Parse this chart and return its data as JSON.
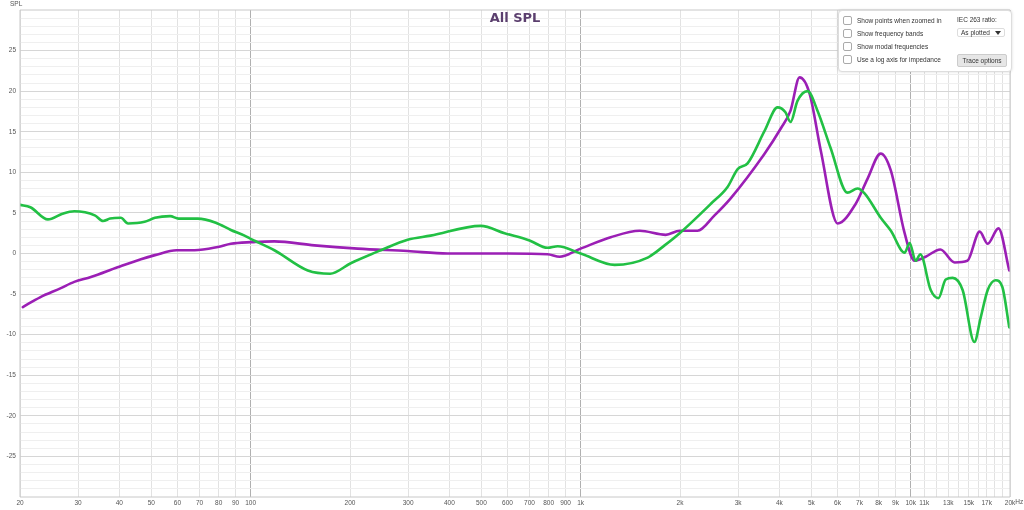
{
  "chart_data": {
    "type": "line",
    "title": "All SPL",
    "ylabel": "SPL",
    "annotations": [
      "Show points when zoomed in",
      "Show frequency bands",
      "Show modal frequencies",
      "Use a log axis for impedance",
      "IEC 263 ratio:",
      "As plotted",
      "Trace options"
    ],
    "log": "x",
    "grid": true,
    "legend": false,
    "marker": "none",
    "line_style": "solid",
    "xlim": [
      20,
      20000
    ],
    "ylim": [
      -30,
      30
    ],
    "xticks": [
      20,
      30,
      40,
      50,
      60,
      70,
      80,
      90,
      100,
      200,
      300,
      400,
      500,
      600,
      700,
      800,
      900,
      {
        "value": 1000,
        "label": "1k"
      },
      {
        "value": 2000,
        "label": "2k"
      },
      {
        "value": 3000,
        "label": "3k"
      },
      {
        "value": 4000,
        "label": "4k"
      },
      {
        "value": 5000,
        "label": "5k"
      },
      {
        "value": 6000,
        "label": "6k"
      },
      {
        "value": 7000,
        "label": "7k"
      },
      {
        "value": 8000,
        "label": "8k"
      },
      {
        "value": 9000,
        "label": "9k"
      },
      {
        "value": 10000,
        "label": "10k"
      },
      {
        "value": 11000,
        "label": "11k"
      },
      {
        "value": 12000,
        "label": null
      },
      {
        "value": 13000,
        "label": "13k"
      },
      {
        "value": 14000,
        "label": null
      },
      {
        "value": 15000,
        "label": "15k"
      },
      {
        "value": 16000,
        "label": null
      },
      {
        "value": 17000,
        "label": "17k"
      },
      {
        "value": 18000,
        "label": null
      },
      {
        "value": 19000,
        "label": null
      },
      {
        "value": 20000,
        "label": "20k"
      }
    ],
    "xlabel": "Hz",
    "yticks": [
      {
        "value": -29,
        "label": null
      },
      {
        "value": -28,
        "label": null
      },
      {
        "value": -27,
        "label": null
      },
      {
        "value": -26,
        "label": null
      },
      -25,
      {
        "value": -24,
        "label": null
      },
      {
        "value": -23,
        "label": null
      },
      {
        "value": -22,
        "label": null
      },
      {
        "value": -21,
        "label": null
      },
      -20,
      {
        "value": -19,
        "label": null
      },
      {
        "value": -18,
        "label": null
      },
      {
        "value": -17,
        "label": null
      },
      {
        "value": -16,
        "label": null
      },
      -15,
      {
        "value": -14,
        "label": null
      },
      {
        "value": -13,
        "label": null
      },
      {
        "value": -12,
        "label": null
      },
      {
        "value": -11,
        "label": null
      },
      -10,
      {
        "value": -9,
        "label": null
      },
      {
        "value": -8,
        "label": null
      },
      {
        "value": -7,
        "label": null
      },
      {
        "value": -6,
        "label": null
      },
      -5,
      {
        "value": -4,
        "label": null
      },
      {
        "value": -3,
        "label": null
      },
      {
        "value": -2,
        "label": null
      },
      {
        "value": -1,
        "label": null
      },
      0,
      {
        "value": 1,
        "label": null
      },
      {
        "value": 2,
        "label": null
      },
      {
        "value": 3,
        "label": null
      },
      {
        "value": 4,
        "label": null
      },
      5,
      {
        "value": 6,
        "label": null
      },
      {
        "value": 7,
        "label": null
      },
      {
        "value": 8,
        "label": null
      },
      {
        "value": 9,
        "label": null
      },
      10,
      {
        "value": 11,
        "label": null
      },
      {
        "value": 12,
        "label": null
      },
      {
        "value": 13,
        "label": null
      },
      {
        "value": 14,
        "label": null
      },
      15,
      {
        "value": 16,
        "label": null
      },
      {
        "value": 17,
        "label": null
      },
      {
        "value": 18,
        "label": null
      },
      {
        "value": 19,
        "label": null
      },
      20,
      {
        "value": 21,
        "label": null
      },
      {
        "value": 22,
        "label": null
      },
      {
        "value": 23,
        "label": null
      },
      {
        "value": 24,
        "label": null
      },
      25,
      {
        "value": 26,
        "label": null
      },
      {
        "value": 27,
        "label": null
      },
      {
        "value": 28,
        "label": null
      },
      {
        "value": 29,
        "label": null
      }
    ],
    "series": [
      {
        "color": "#22c044",
        "x": [
          20,
          21.5,
          24.3,
          26.9,
          29.2,
          33.7,
          35.7,
          37.5,
          40.4,
          42.5,
          47.7,
          51.3,
          57,
          60.5,
          69.1,
          78.4,
          87.1,
          95.8,
          100,
          118,
          149,
          174,
          201,
          248,
          299,
          351,
          498,
          588,
          700,
          794,
          852,
          1000,
          1268,
          1596,
          1796,
          1995,
          2477,
          2787,
          2991,
          3205,
          3608,
          3951,
          4174,
          4325,
          4540,
          4870,
          5220,
          5720,
          6436,
          6900,
          7249,
          8115,
          8710,
          9588,
          9931,
          10350,
          10700,
          11500,
          12140,
          12770,
          13400,
          14370,
          15600,
          16300,
          17120,
          18090,
          18950,
          19900
        ],
        "values": [
          6.0,
          5.7,
          4.2,
          4.9,
          5.2,
          4.7,
          4.0,
          4.3,
          4.4,
          3.7,
          3.9,
          4.4,
          4.6,
          4.3,
          4.3,
          3.8,
          2.9,
          2.2,
          1.8,
          0.4,
          -2.1,
          -2.5,
          -1.2,
          0.4,
          1.7,
          2.2,
          3.4,
          2.5,
          1.6,
          0.7,
          0.9,
          0,
          -1.4,
          -0.5,
          1.0,
          2.5,
          6.1,
          8.2,
          10.4,
          11.1,
          15.1,
          18.0,
          17.4,
          16.2,
          18.8,
          20.0,
          17.6,
          13.0,
          7.5,
          8.0,
          7.4,
          4.4,
          2.8,
          0.1,
          1.3,
          -0.9,
          -0.1,
          -4.5,
          -5.5,
          -3.2,
          -3.0,
          -4.5,
          -10.9,
          -7.9,
          -4.5,
          -3.3,
          -4.1,
          -9.1
        ]
      },
      {
        "color": "#9b1fb5",
        "x": [
          20.4,
          23,
          26.5,
          29.2,
          32.8,
          39.5,
          46.5,
          51.3,
          59.6,
          67.6,
          79.5,
          87.1,
          100,
          118,
          156,
          211,
          299,
          395,
          600,
          794,
          864,
          1000,
          1233,
          1510,
          1810,
          1995,
          2260,
          2545,
          2848,
          3608,
          4040,
          4325,
          4606,
          4940,
          5340,
          6010,
          6810,
          7400,
          8115,
          8710,
          9588,
          10280,
          11100,
          12300,
          13600,
          14850,
          16190,
          17120,
          18450,
          19900
        ],
        "values": [
          -6.6,
          -5.4,
          -4.3,
          -3.5,
          -2.9,
          -1.7,
          -0.7,
          -0.2,
          0.4,
          0.4,
          0.8,
          1.2,
          1.4,
          1.5,
          1.0,
          0.6,
          0.3,
          0,
          0,
          -0.1,
          -0.4,
          0.6,
          2.0,
          2.8,
          2.3,
          2.8,
          2.8,
          4.7,
          6.8,
          12.3,
          15.4,
          17.6,
          21.7,
          19.7,
          12.7,
          3.7,
          6.1,
          9.2,
          12.3,
          10.2,
          2.5,
          -0.9,
          -0.4,
          0.5,
          -1.1,
          -0.9,
          2.7,
          1.2,
          3.1,
          -2.1
        ]
      }
    ]
  }
}
